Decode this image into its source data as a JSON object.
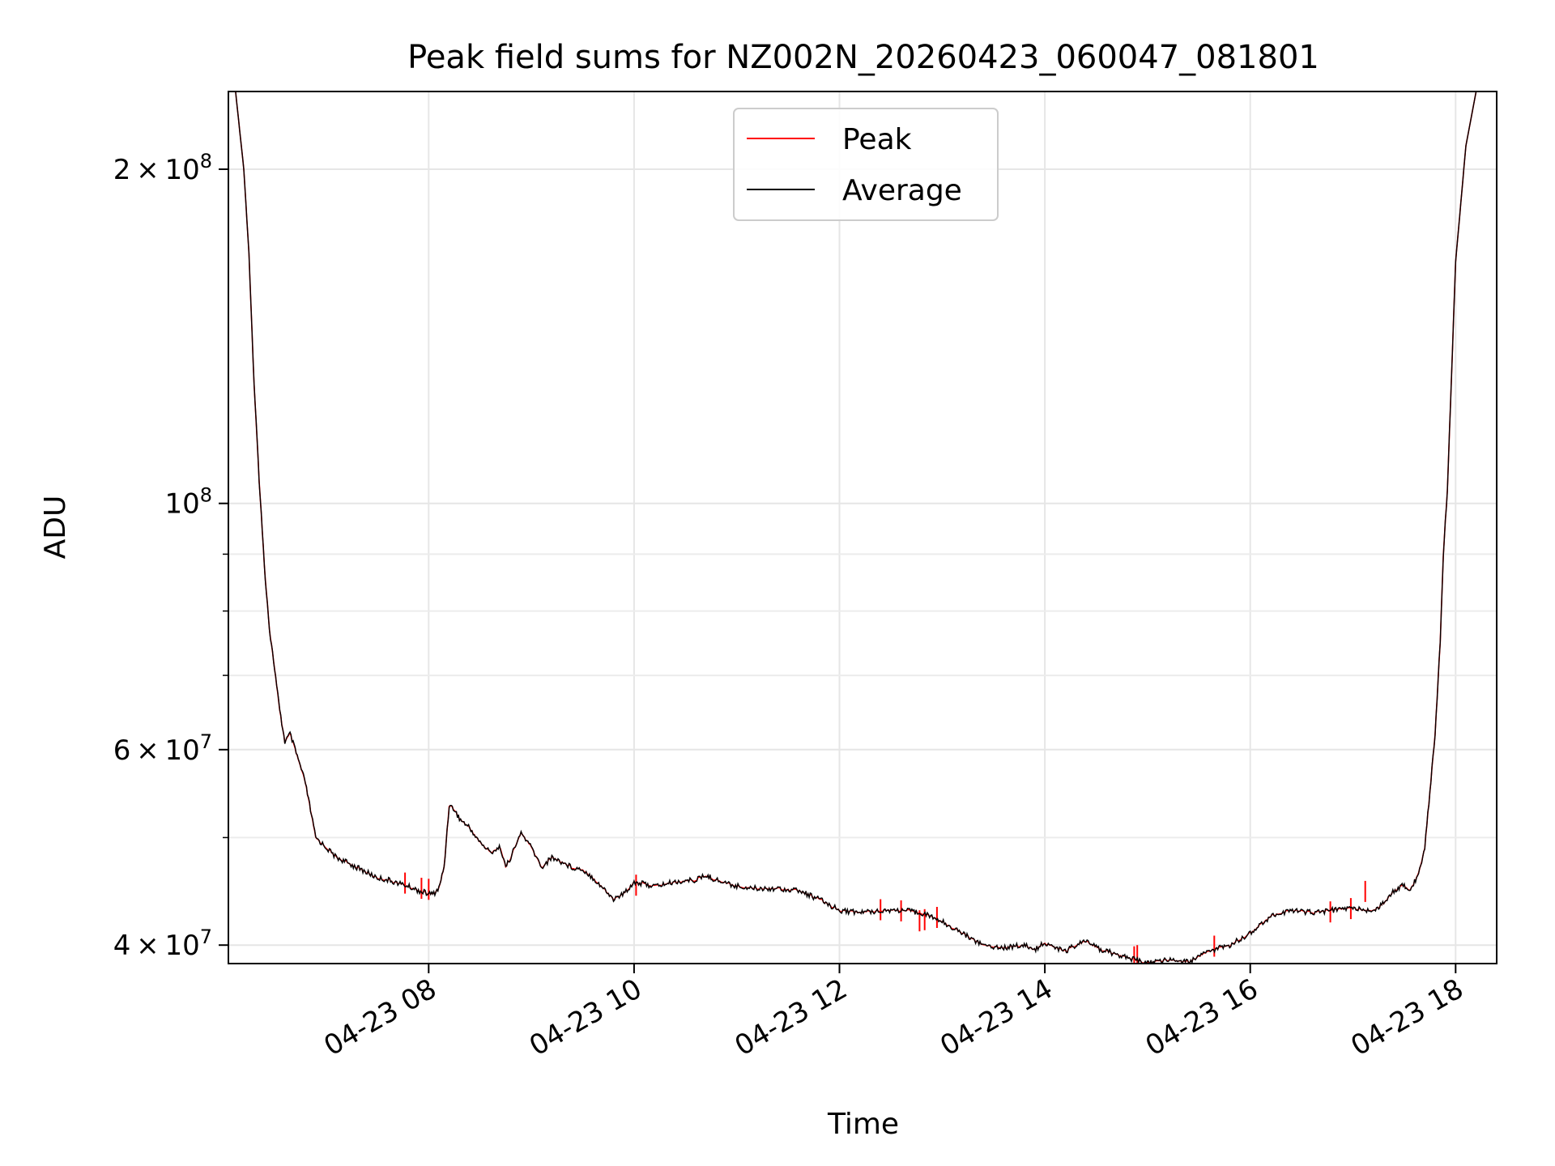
{
  "chart_data": {
    "type": "line",
    "title": "Peak field sums for NZ002N_20260423_060047_081801",
    "xlabel": "Time",
    "ylabel": "ADU",
    "x_unit": "hours since 04-23 00:00",
    "xlim": [
      6.05,
      18.4
    ],
    "ylim": [
      38500000,
      235000000
    ],
    "yscale": "log",
    "grid": true,
    "legend_position": "top-center",
    "x_ticks": [
      {
        "value": 8,
        "label": "04-23 08"
      },
      {
        "value": 10,
        "label": "04-23 10"
      },
      {
        "value": 12,
        "label": "04-23 12"
      },
      {
        "value": 14,
        "label": "04-23 14"
      },
      {
        "value": 16,
        "label": "04-23 16"
      },
      {
        "value": 18,
        "label": "04-23 18"
      }
    ],
    "y_major_ticks": [
      {
        "value": 40000000,
        "mantissa": "4",
        "exponent": "7"
      },
      {
        "value": 60000000,
        "mantissa": "6",
        "exponent": "7"
      },
      {
        "value": 100000000,
        "mantissa": "",
        "exponent": "8"
      },
      {
        "value": 200000000,
        "mantissa": "2",
        "exponent": "8"
      }
    ],
    "y_minor_ticks": [
      50000000,
      70000000,
      80000000,
      90000000
    ],
    "times_symbol": "×",
    "base": "10",
    "series": [
      {
        "name": "Peak",
        "color": "#ff0000",
        "x": [
          6.05,
          6.12,
          6.2,
          6.25,
          6.3,
          6.35,
          6.4,
          6.45,
          6.5,
          6.55,
          6.6,
          6.65,
          6.7,
          6.75,
          6.8,
          6.9,
          7.0,
          7.1,
          7.2,
          7.3,
          7.4,
          7.5,
          7.6,
          7.7,
          7.8,
          7.9,
          8.0,
          8.05,
          8.1,
          8.15,
          8.2,
          8.25,
          8.3,
          8.4,
          8.5,
          8.6,
          8.7,
          8.75,
          8.8,
          8.9,
          9.0,
          9.1,
          9.2,
          9.3,
          9.4,
          9.5,
          9.6,
          9.7,
          9.8,
          9.9,
          10.0,
          10.2,
          10.4,
          10.6,
          10.7,
          10.8,
          10.9,
          11.0,
          11.2,
          11.4,
          11.6,
          11.8,
          12.0,
          12.2,
          12.4,
          12.6,
          12.8,
          13.0,
          13.2,
          13.4,
          13.6,
          13.8,
          13.9,
          14.0,
          14.1,
          14.2,
          14.3,
          14.4,
          14.5,
          14.6,
          14.8,
          15.0,
          15.1,
          15.2,
          15.4,
          15.6,
          15.8,
          16.0,
          16.2,
          16.4,
          16.6,
          16.8,
          17.0,
          17.1,
          17.2,
          17.3,
          17.4,
          17.5,
          17.55,
          17.6,
          17.65,
          17.7,
          17.75,
          17.8,
          17.85,
          17.88,
          17.92,
          17.96,
          18.0,
          18.1,
          18.2,
          18.3,
          18.4
        ],
        "values": [
          235000000,
          235000000,
          200000000,
          168000000,
          128000000,
          105000000,
          88000000,
          77000000,
          71000000,
          65000000,
          61000000,
          62000000,
          60000000,
          58000000,
          56000000,
          50000000,
          49000000,
          48000000,
          47500000,
          47000000,
          46500000,
          46000000,
          45800000,
          45500000,
          45200000,
          44800000,
          44500000,
          44500000,
          45000000,
          47000000,
          53500000,
          53000000,
          52000000,
          51000000,
          49500000,
          48500000,
          49000000,
          47000000,
          48000000,
          50500000,
          49000000,
          47000000,
          48000000,
          47500000,
          47000000,
          46800000,
          46000000,
          45000000,
          44000000,
          44500000,
          45600000,
          45200000,
          45600000,
          45800000,
          46200000,
          45800000,
          45500000,
          45200000,
          45000000,
          45000000,
          44800000,
          44000000,
          43000000,
          42800000,
          43000000,
          43000000,
          42800000,
          42000000,
          41000000,
          40000000,
          39800000,
          40000000,
          39600000,
          40200000,
          39800000,
          39500000,
          40000000,
          40300000,
          39800000,
          39500000,
          39000000,
          38500000,
          38700000,
          38800000,
          38600000,
          39500000,
          40000000,
          41000000,
          42500000,
          43000000,
          42800000,
          43000000,
          43200000,
          43000000,
          43000000,
          43600000,
          44800000,
          45300000,
          44800000,
          45600000,
          46800000,
          49000000,
          55000000,
          62000000,
          75000000,
          90000000,
          103000000,
          130000000,
          165000000,
          210000000,
          235000000,
          235000000,
          235000000
        ],
        "spikes": [
          {
            "x": 7.77,
            "value": 46500000
          },
          {
            "x": 7.93,
            "value": 46000000
          },
          {
            "x": 8.0,
            "value": 45900000
          },
          {
            "x": 10.02,
            "value": 46300000
          },
          {
            "x": 12.4,
            "value": 44000000
          },
          {
            "x": 12.6,
            "value": 43900000
          },
          {
            "x": 12.78,
            "value": 43000000
          },
          {
            "x": 12.83,
            "value": 43100000
          },
          {
            "x": 12.95,
            "value": 43300000
          },
          {
            "x": 14.87,
            "value": 39900000
          },
          {
            "x": 14.9,
            "value": 40000000
          },
          {
            "x": 15.65,
            "value": 40800000
          },
          {
            "x": 16.78,
            "value": 43800000
          },
          {
            "x": 16.98,
            "value": 44100000
          },
          {
            "x": 17.12,
            "value": 45700000
          }
        ]
      },
      {
        "name": "Average",
        "color": "#000000",
        "x": [
          6.05,
          6.12,
          6.2,
          6.25,
          6.3,
          6.35,
          6.4,
          6.45,
          6.5,
          6.55,
          6.6,
          6.65,
          6.7,
          6.75,
          6.8,
          6.9,
          7.0,
          7.1,
          7.2,
          7.3,
          7.4,
          7.5,
          7.6,
          7.7,
          7.8,
          7.9,
          8.0,
          8.05,
          8.1,
          8.15,
          8.2,
          8.25,
          8.3,
          8.4,
          8.5,
          8.6,
          8.7,
          8.75,
          8.8,
          8.9,
          9.0,
          9.1,
          9.2,
          9.3,
          9.4,
          9.5,
          9.6,
          9.7,
          9.8,
          9.9,
          10.0,
          10.2,
          10.4,
          10.6,
          10.7,
          10.8,
          10.9,
          11.0,
          11.2,
          11.4,
          11.6,
          11.8,
          12.0,
          12.2,
          12.4,
          12.6,
          12.8,
          13.0,
          13.2,
          13.4,
          13.6,
          13.8,
          13.9,
          14.0,
          14.1,
          14.2,
          14.3,
          14.4,
          14.5,
          14.6,
          14.8,
          15.0,
          15.1,
          15.2,
          15.4,
          15.6,
          15.8,
          16.0,
          16.2,
          16.4,
          16.6,
          16.8,
          17.0,
          17.1,
          17.2,
          17.3,
          17.4,
          17.5,
          17.55,
          17.6,
          17.65,
          17.7,
          17.75,
          17.8,
          17.85,
          17.88,
          17.92,
          17.96,
          18.0,
          18.1,
          18.2,
          18.3,
          18.4
        ],
        "values": [
          235000000,
          235000000,
          200000000,
          168000000,
          128000000,
          105000000,
          88000000,
          77000000,
          71000000,
          65000000,
          61000000,
          62000000,
          60000000,
          58000000,
          56000000,
          50000000,
          49000000,
          48000000,
          47500000,
          47000000,
          46500000,
          46000000,
          45800000,
          45500000,
          45200000,
          44800000,
          44500000,
          44500000,
          45000000,
          47000000,
          53500000,
          53000000,
          52000000,
          51000000,
          49500000,
          48500000,
          49000000,
          47000000,
          48000000,
          50500000,
          49000000,
          47000000,
          48000000,
          47500000,
          47000000,
          46800000,
          46000000,
          45000000,
          44000000,
          44500000,
          45600000,
          45200000,
          45600000,
          45800000,
          46200000,
          45800000,
          45500000,
          45200000,
          45000000,
          45000000,
          44800000,
          44000000,
          43000000,
          42800000,
          43000000,
          43000000,
          42800000,
          42000000,
          41000000,
          40000000,
          39800000,
          40000000,
          39600000,
          40200000,
          39800000,
          39500000,
          40000000,
          40300000,
          39800000,
          39500000,
          39000000,
          38500000,
          38700000,
          38800000,
          38600000,
          39500000,
          40000000,
          41000000,
          42500000,
          43000000,
          42800000,
          43000000,
          43200000,
          43000000,
          43000000,
          43600000,
          44800000,
          45300000,
          44800000,
          45600000,
          46800000,
          49000000,
          55000000,
          62000000,
          75000000,
          90000000,
          103000000,
          130000000,
          165000000,
          210000000,
          235000000,
          235000000,
          235000000
        ]
      }
    ]
  }
}
